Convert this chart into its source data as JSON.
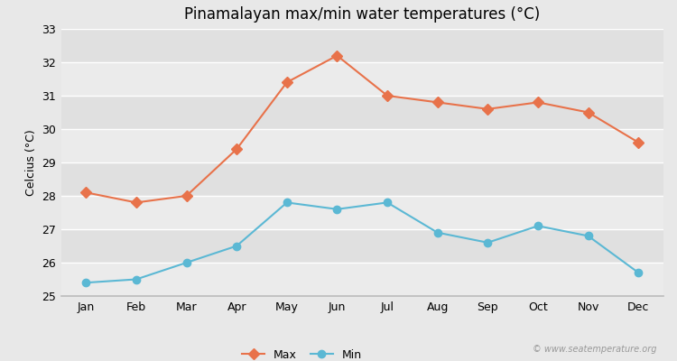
{
  "months": [
    "Jan",
    "Feb",
    "Mar",
    "Apr",
    "May",
    "Jun",
    "Jul",
    "Aug",
    "Sep",
    "Oct",
    "Nov",
    "Dec"
  ],
  "max_temps": [
    28.1,
    27.8,
    28.0,
    29.4,
    31.4,
    32.2,
    31.0,
    30.8,
    30.6,
    30.8,
    30.5,
    29.6
  ],
  "min_temps": [
    25.4,
    25.5,
    26.0,
    26.5,
    27.8,
    27.6,
    27.8,
    26.9,
    26.6,
    27.1,
    26.8,
    25.7
  ],
  "max_color": "#E8724A",
  "min_color": "#5BB8D4",
  "title": "Pinamalayan max/min water temperatures (°C)",
  "ylabel": "Celcius (°C)",
  "ylim": [
    25,
    33
  ],
  "yticks": [
    25,
    26,
    27,
    28,
    29,
    30,
    31,
    32,
    33
  ],
  "bg_color": "#E8E8E8",
  "band_colors": [
    "#EBEBEB",
    "#E0E0E0"
  ],
  "grid_color": "#FFFFFF",
  "watermark": "© www.seatemperature.org",
  "legend_max": "Max",
  "legend_min": "Min"
}
